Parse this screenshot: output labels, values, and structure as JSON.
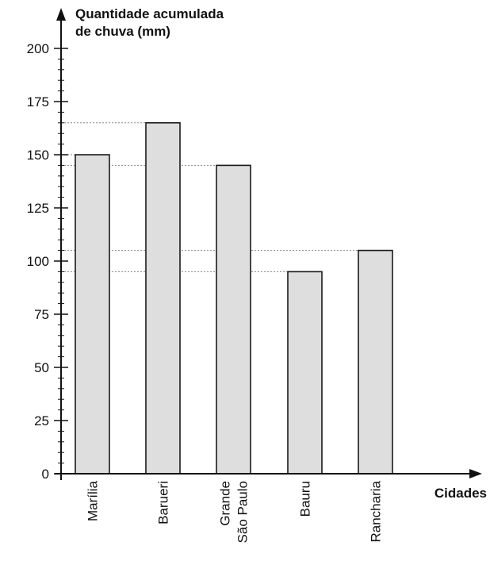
{
  "chart_data": {
    "type": "bar",
    "categories": [
      [
        "Marília"
      ],
      [
        "Barueri"
      ],
      [
        "Grande",
        "São Paulo"
      ],
      [
        "Bauru"
      ],
      [
        "Rancharia"
      ]
    ],
    "values": [
      150,
      165,
      145,
      95,
      105
    ],
    "ylabel_lines": [
      "Quantidade acumulada",
      "de chuva (mm)"
    ],
    "xlabel": "Cidades",
    "ylim": [
      0,
      200
    ],
    "y_ticks": [
      "0",
      "25",
      "50",
      "75",
      "100",
      "125",
      "150",
      "175",
      "200"
    ],
    "y_tick_values": [
      0,
      25,
      50,
      75,
      100,
      125,
      150,
      175,
      200
    ],
    "y_minor_step": 5,
    "reference_lines": [
      165,
      150,
      145,
      105,
      95
    ],
    "grid": false,
    "colors": {
      "bar_fill": "#dedede",
      "bar_stroke": "#1a1a1a",
      "axis": "#111111",
      "ref_line": "#888888"
    }
  }
}
